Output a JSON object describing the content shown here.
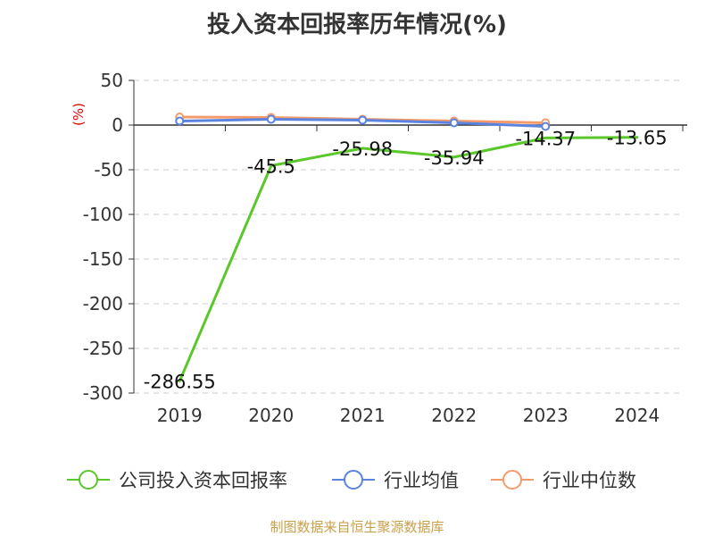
{
  "chart_data": {
    "type": "line",
    "title": "投入资本回报率历年情况(%)",
    "unit_label": "(%)",
    "categories": [
      "2019",
      "2020",
      "2021",
      "2022",
      "2023",
      "2024"
    ],
    "ylim": [
      -300,
      50
    ],
    "yticks": [
      50,
      0,
      -50,
      -100,
      -150,
      -200,
      -250,
      -300
    ],
    "grid": true,
    "legend_position": "bottom",
    "series": [
      {
        "name": "公司投入资本回报率",
        "color": "#5ac72a",
        "values": [
          -286.55,
          -45.5,
          -25.98,
          -35.94,
          -14.37,
          -13.65
        ],
        "labels": [
          "-286.55",
          "-45.5",
          "-25.98",
          "-35.94",
          "-14.37",
          "-13.65"
        ],
        "markers": false
      },
      {
        "name": "行业均值",
        "color": "#5a84e0",
        "values": [
          4.5,
          6.5,
          5.5,
          2.5,
          -1.5,
          null
        ],
        "markers": true
      },
      {
        "name": "行业中位数",
        "color": "#f59a6b",
        "values": [
          9.0,
          8.5,
          6.5,
          4.5,
          2.5,
          null
        ],
        "markers": true
      }
    ],
    "source": "制图数据来自恒生聚源数据库"
  }
}
